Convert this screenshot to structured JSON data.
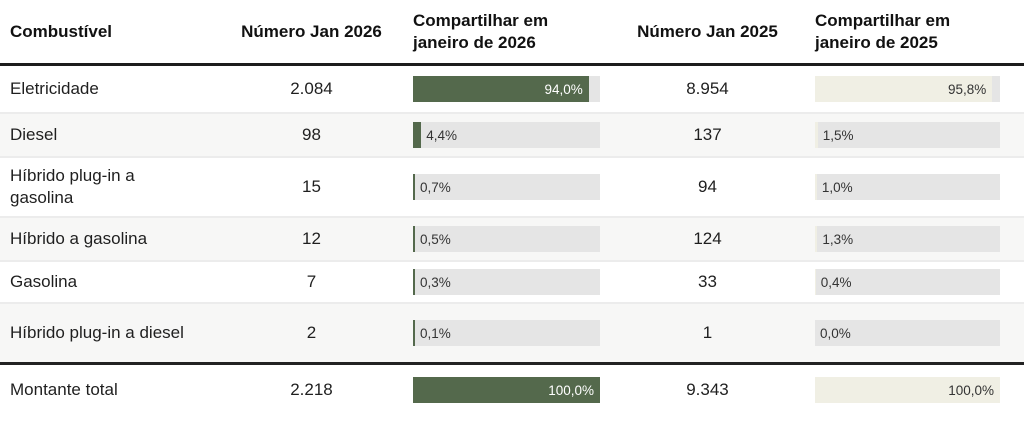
{
  "table": {
    "columns": {
      "fuel": "Combustível",
      "num_2026": "Número Jan 2026",
      "share_2026": "Compartilhar em janeiro de 2026",
      "num_2025": "Número Jan 2025",
      "share_2025": "Compartilhar em janeiro de 2025"
    },
    "rows": [
      {
        "fuel": "Eletricidade",
        "num_2026": "2.084",
        "share_2026": "94,0%",
        "share_2026_pct": 94.0,
        "num_2025": "8.954",
        "share_2025": "95,8%",
        "share_2025_pct": 95.8
      },
      {
        "fuel": "Diesel",
        "num_2026": "98",
        "share_2026": "4,4%",
        "share_2026_pct": 4.4,
        "num_2025": "137",
        "share_2025": "1,5%",
        "share_2025_pct": 1.5
      },
      {
        "fuel": "Híbrido plug-in a gasolina",
        "num_2026": "15",
        "share_2026": "0,7%",
        "share_2026_pct": 0.7,
        "num_2025": "94",
        "share_2025": "1,0%",
        "share_2025_pct": 1.0
      },
      {
        "fuel": "Híbrido a gasolina",
        "num_2026": "12",
        "share_2026": "0,5%",
        "share_2026_pct": 0.5,
        "num_2025": "124",
        "share_2025": "1,3%",
        "share_2025_pct": 1.3
      },
      {
        "fuel": "Gasolina",
        "num_2026": "7",
        "share_2026": "0,3%",
        "share_2026_pct": 0.3,
        "num_2025": "33",
        "share_2025": "0,4%",
        "share_2025_pct": 0.4
      },
      {
        "fuel": "Híbrido plug-in a diesel",
        "num_2026": "2",
        "share_2026": "0,1%",
        "share_2026_pct": 0.1,
        "num_2025": "1",
        "share_2025": "0,0%",
        "share_2025_pct": 0.0
      },
      {
        "fuel": "Montante total",
        "num_2026": "2.218",
        "share_2026": "100,0%",
        "share_2026_pct": 100.0,
        "num_2025": "9.343",
        "share_2025": "100,0%",
        "share_2025_pct": 100.0
      }
    ]
  },
  "colors": {
    "bar_fill_2026": "#54694c",
    "bar_fill_2025": "#f0efe4",
    "bar_track": "#e5e5e5",
    "row_alt": "#f7f7f6",
    "rule": "#1c1c1c"
  },
  "chart_data": {
    "type": "table",
    "title": "",
    "columns": [
      "Combustível",
      "Número Jan 2026",
      "Compartilhar em janeiro de 2026",
      "Número Jan 2025",
      "Compartilhar em janeiro de 2025"
    ],
    "rows": [
      [
        "Eletricidade",
        2084,
        "94,0%",
        8954,
        "95,8%"
      ],
      [
        "Diesel",
        98,
        "4,4%",
        137,
        "1,5%"
      ],
      [
        "Híbrido plug-in a gasolina",
        15,
        "0,7%",
        94,
        "1,0%"
      ],
      [
        "Híbrido a gasolina",
        12,
        "0,5%",
        124,
        "1,3%"
      ],
      [
        "Gasolina",
        7,
        "0,3%",
        33,
        "0,4%"
      ],
      [
        "Híbrido plug-in a diesel",
        2,
        "0,1%",
        1,
        "0,0%"
      ],
      [
        "Montante total",
        2218,
        "100,0%",
        9343,
        "100,0%"
      ]
    ],
    "embedded_bars": {
      "categories": [
        "Eletricidade",
        "Diesel",
        "Híbrido plug-in a gasolina",
        "Híbrido a gasolina",
        "Gasolina",
        "Híbrido plug-in a diesel",
        "Montante total"
      ],
      "series": [
        {
          "name": "Compartilhar em janeiro de 2026",
          "values": [
            94.0,
            4.4,
            0.7,
            0.5,
            0.3,
            0.1,
            100.0
          ],
          "color": "#54694c"
        },
        {
          "name": "Compartilhar em janeiro de 2025",
          "values": [
            95.8,
            1.5,
            1.0,
            1.3,
            0.4,
            0.0,
            100.0
          ],
          "color": "#f0efe4"
        }
      ],
      "xlim": [
        0,
        100
      ],
      "unit": "%"
    }
  }
}
